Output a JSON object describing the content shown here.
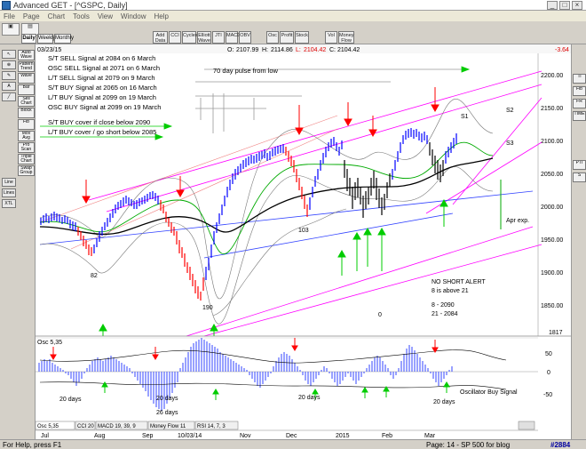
{
  "window": {
    "title": "Advanced GET - [^GSPC, Daily]",
    "btn_min": "_",
    "btn_max": "□",
    "btn_close": "×"
  },
  "menu": [
    "File",
    "Page",
    "Chart",
    "Tools",
    "View",
    "Window",
    "Help"
  ],
  "toolbar": {
    "left_tabs": [
      "Daily",
      "Weekly",
      "Monthly"
    ],
    "tools": [
      "Add Data",
      "CCI",
      "Cycles",
      "Elliott Wave",
      "JTI",
      "MACD",
      "OBV",
      "Osc",
      "Profit",
      "Stock",
      "Vol",
      "Money Flow"
    ]
  },
  "chart_header": {
    "date": "03/23/15",
    "open_label": "O:",
    "open": "2107.99",
    "high_label": "H:",
    "high": "2114.86",
    "low_label": "L:",
    "low": "2104.42",
    "close_label": "C:",
    "close": "2104.42",
    "change": "-3.64"
  },
  "left_buttons": [
    "Auto Wave",
    "Pattern Trend",
    "Wave",
    "Bar",
    "Sell Chart",
    "Block",
    "Fib",
    "Mov Avg",
    "Pro Scan",
    "Triple Chart",
    "Swap Group"
  ],
  "left_small": [
    "Line",
    "Lines",
    "XTL"
  ],
  "right_buttons": [
    "Ti",
    "Fib",
    "FR",
    "TIME",
    "PTI",
    "S"
  ],
  "annotations": {
    "signals": [
      "S/T SELL Signal at 2084 on 6 March",
      "OSC SELL Signal at 2071 on 6 March",
      "L/T SELL Signal at 2079 on 9 March",
      "S/T BUY Signal at 2065 on 16 March",
      "L/T BUY Signal at 2099 on 19 March",
      "OSC BUY Signal at 2099 on 19 March"
    ],
    "cover": [
      "S/T BUY cover if close below 2090",
      "L/T BUY cover / go short below 2085"
    ],
    "pulse": "70 day pulse from low",
    "wave_labels": [
      "82",
      "190",
      "103",
      "0"
    ],
    "s_labels": [
      "S1",
      "S2",
      "S3"
    ],
    "apr_exp": "Apr exp.",
    "alert": [
      "NO SHORT ALERT",
      "8 is above 21",
      "8    - 2090",
      "21 - 2084"
    ],
    "osc_labels": [
      "20 days",
      "20 days",
      "26 days",
      "20 days",
      "20 days"
    ],
    "osc_buy": "Oscillator Buy Signal"
  },
  "y_axis": [
    "2200.00",
    "2150.00",
    "2100.00",
    "2050.00",
    "2000.00",
    "1950.00",
    "1900.00",
    "1850.00",
    "1817"
  ],
  "osc_axis": [
    "50",
    "0",
    "-50"
  ],
  "x_axis": [
    "Jul",
    "Aug",
    "Sep",
    "10/03/14",
    "Nov",
    "Dec",
    "2015",
    "Feb",
    "Mar"
  ],
  "osc_title": "Osc 5,35",
  "osc_tabs": [
    "Osc 5,35",
    "CCI 20",
    "MACD 19, 39, 9",
    "Money Flow 11",
    "RSI 14, 7, 3"
  ],
  "status": {
    "help": "For Help, press F1",
    "page": "Page: 14 - SP 500 for blog",
    "num": "#2884"
  },
  "colors": {
    "upbar": "#0000ff",
    "downbar": "#ff0000",
    "ma_black": "#000000",
    "ma_green": "#00aa00",
    "band": "#888888",
    "channel": "#ff00ff",
    "arrow_red": "#ff0000",
    "arrow_green": "#00cc00"
  }
}
